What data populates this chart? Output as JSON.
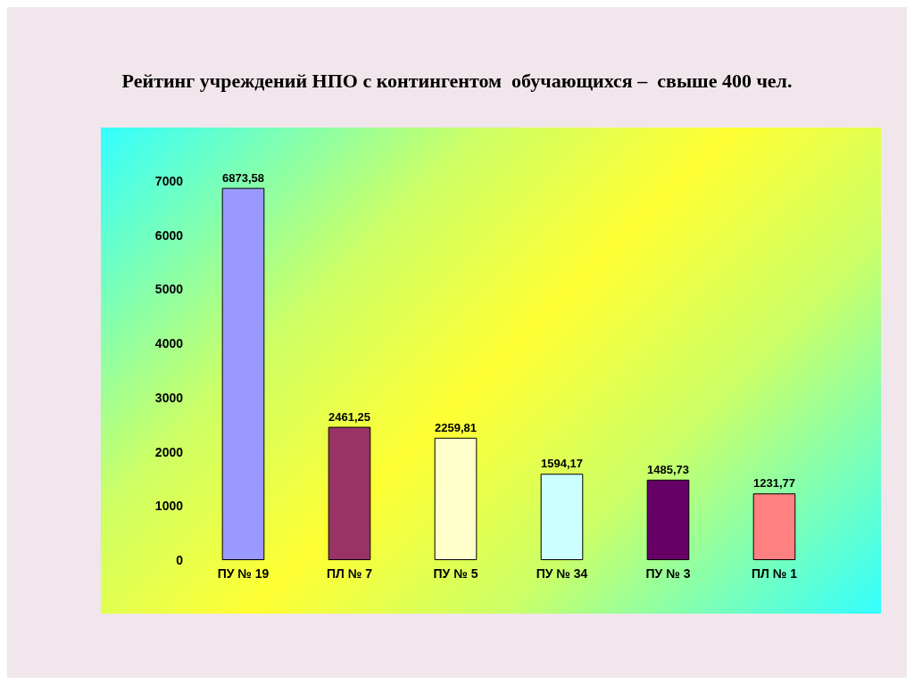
{
  "chart_data": {
    "type": "bar",
    "title": "Рейтинг учреждений НПО с контингентом  обучающихся –  свыше 400 чел.",
    "categories": [
      "ПУ № 19",
      "ПЛ № 7",
      "ПУ № 5",
      "ПУ № 34",
      "ПУ № 3",
      "ПЛ № 1"
    ],
    "values": [
      6873.58,
      2461.25,
      2259.81,
      1594.17,
      1485.73,
      1231.77
    ],
    "value_labels": [
      "6873,58",
      "2461,25",
      "2259,81",
      "1594,17",
      "1485,73",
      "1231,77"
    ],
    "colors": [
      "#9999ff",
      "#993366",
      "#ffffcc",
      "#ccffff",
      "#660066",
      "#ff8080"
    ],
    "ylim": [
      0,
      7000
    ],
    "yticks": [
      0,
      1000,
      2000,
      3000,
      4000,
      5000,
      6000,
      7000
    ],
    "grid": false
  }
}
